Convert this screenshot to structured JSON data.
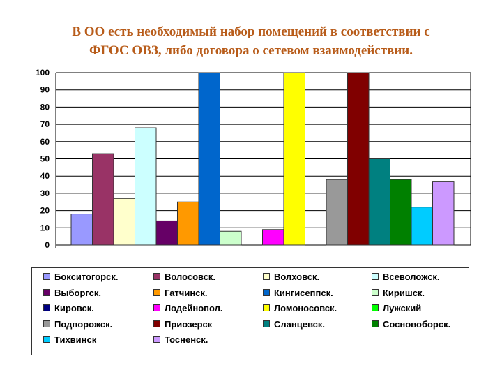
{
  "title_line1": "В ОО есть необходимый набор помещений в соответствии с",
  "title_line2": "ФГОС ОВЗ, либо договора о сетевом взаимодействии.",
  "chart_data": {
    "type": "bar",
    "title": "В ОО есть необходимый набор помещений в соответствии с ФГОС ОВЗ, либо договора о сетевом взаимодействии.",
    "ylim": [
      0,
      100
    ],
    "yticks": [
      0,
      10,
      20,
      30,
      40,
      50,
      60,
      70,
      80,
      90,
      100
    ],
    "grid": true,
    "legend_position": "bottom",
    "series": [
      {
        "name": "Бокситогорск.",
        "value": 18,
        "color": "#9999ff"
      },
      {
        "name": "Волосовск.",
        "value": 53,
        "color": "#993366"
      },
      {
        "name": "Волховск.",
        "value": 27,
        "color": "#ffffcc"
      },
      {
        "name": "Всеволожск.",
        "value": 68,
        "color": "#ccffff"
      },
      {
        "name": "Выборгск.",
        "value": 14,
        "color": "#660066"
      },
      {
        "name": "Гатчинск.",
        "value": 25,
        "color": "#ff9900"
      },
      {
        "name": "Кингисеппск.",
        "value": 100,
        "color": "#0066cc"
      },
      {
        "name": "Киришск.",
        "value": 8,
        "color": "#ccffcc"
      },
      {
        "name": "Кировск.",
        "value": 0,
        "color": "#000080"
      },
      {
        "name": "Лодейнопол.",
        "value": 9,
        "color": "#ff00ff"
      },
      {
        "name": "Ломоносовск.",
        "value": 100,
        "color": "#ffff00"
      },
      {
        "name": "Лужский",
        "value": 0,
        "color": "#00ff00"
      },
      {
        "name": "Подпорожск.",
        "value": 38,
        "color": "#999999"
      },
      {
        "name": "Приозерск",
        "value": 100,
        "color": "#800000"
      },
      {
        "name": "Сланцевск.",
        "value": 50,
        "color": "#008080"
      },
      {
        "name": "Сосновоборск.",
        "value": 38,
        "color": "#008000"
      },
      {
        "name": "Тихвинск",
        "value": 22,
        "color": "#00ccff"
      },
      {
        "name": "Тосненск.",
        "value": 37,
        "color": "#cc99ff"
      }
    ]
  }
}
